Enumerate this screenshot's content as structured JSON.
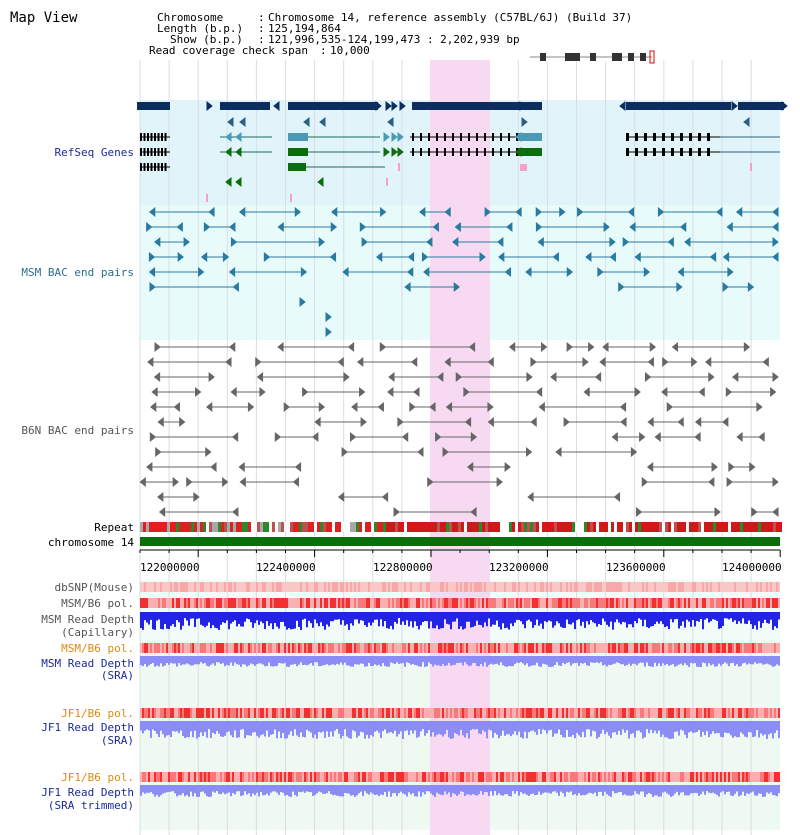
{
  "page": {
    "title": "Map View"
  },
  "header": {
    "chromosome_label": "Chromosome   ",
    "chromosome_value": "Chromosome 14, reference assembly (C57BL/6J) (Build 37)",
    "length_label": "Length (b.p.)",
    "length_value": "125,194,864",
    "show_label": "Show (b.p.)",
    "show_value": "121,996,535-124,199,473 : 2,202,939 bp",
    "coverage_label": "Read coverage check span",
    "coverage_value": "10,000"
  },
  "tracks": {
    "refseq": "RefSeq Genes",
    "msm_bac": "MSM BAC end pairs",
    "b6n_bac": "B6N BAC end pairs",
    "repeat": "Repeat",
    "chromosome": "chromosome 14",
    "dbsnp": "dbSNP(Mouse)",
    "msm_b6_pol": "MSM/B6 pol.",
    "msm_read_depth_cap_1": "MSM Read Depth",
    "msm_read_depth_cap_2": "(Capillary)",
    "msm_b6_pol_2": "MSM/B6 pol.",
    "msm_read_depth_sra_1": "MSM Read Depth",
    "msm_read_depth_sra_2": "(SRA)",
    "jf1_b6_pol": "JF1/B6 pol.",
    "jf1_read_depth_sra_1": "JF1 Read Depth",
    "jf1_read_depth_sra_2": "(SRA)",
    "jf1_b6_pol_2": "JF1/B6 pol.",
    "jf1_read_depth_trim_1": "JF1 Read Depth",
    "jf1_read_depth_trim_2": "(SRA trimmed)"
  },
  "axis": {
    "ticks": [
      "122000000",
      "122400000",
      "122800000",
      "123200000",
      "123600000",
      "124000000"
    ]
  },
  "colors": {
    "refseq_bg": "#e1f4fa",
    "bac_bg": "#e8fbfb",
    "highlight": "#f7d9f2",
    "gene_dark": "#0d2d5e",
    "chromosome": "#0a6e0a",
    "msm_depth": "#2323e6",
    "sra_depth": "#8c8cf7"
  }
}
